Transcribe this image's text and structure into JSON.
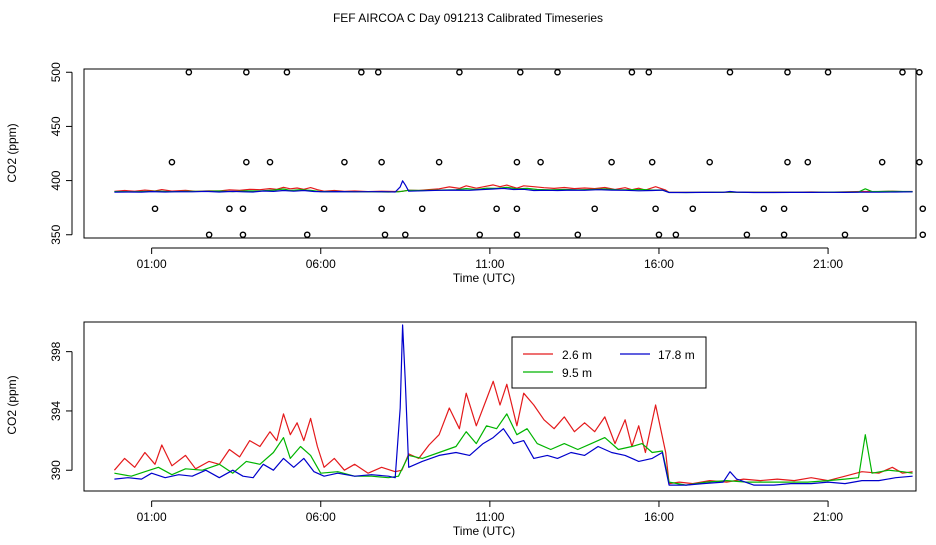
{
  "page": {
    "title": "FEF AIRCOA C  Day 091213  Calibrated Timeseries"
  },
  "colors": {
    "s26": "#e41a1c",
    "s95": "#00b400",
    "s178": "#0000cc",
    "axis": "#000000"
  },
  "chart_data": [
    {
      "type": "scatter",
      "panel": "top",
      "xlabel": "Time (UTC)",
      "ylabel": "CO2 (ppm)",
      "xlim": [
        -1.0,
        23.6
      ],
      "ylim": [
        347,
        503
      ],
      "x_ticks": [
        1,
        6,
        11,
        16,
        21
      ],
      "x_tick_labels": [
        "01:00",
        "06:00",
        "11:00",
        "16:00",
        "21:00"
      ],
      "y_ticks": [
        350,
        400,
        450,
        500
      ],
      "y_tick_labels": [
        "350",
        "400",
        "450",
        "500"
      ],
      "flag_points": [
        {
          "x": 2.1,
          "y": 500
        },
        {
          "x": 3.8,
          "y": 500
        },
        {
          "x": 5.0,
          "y": 500
        },
        {
          "x": 7.2,
          "y": 500
        },
        {
          "x": 7.7,
          "y": 500
        },
        {
          "x": 10.1,
          "y": 500
        },
        {
          "x": 11.9,
          "y": 500
        },
        {
          "x": 13.0,
          "y": 500
        },
        {
          "x": 15.2,
          "y": 500
        },
        {
          "x": 15.7,
          "y": 500
        },
        {
          "x": 18.1,
          "y": 500
        },
        {
          "x": 19.8,
          "y": 500
        },
        {
          "x": 21.0,
          "y": 500
        },
        {
          "x": 23.2,
          "y": 500
        },
        {
          "x": 23.7,
          "y": 500
        },
        {
          "x": 1.6,
          "y": 417
        },
        {
          "x": 3.8,
          "y": 417
        },
        {
          "x": 4.5,
          "y": 417
        },
        {
          "x": 6.7,
          "y": 417
        },
        {
          "x": 7.8,
          "y": 417
        },
        {
          "x": 9.5,
          "y": 417
        },
        {
          "x": 11.8,
          "y": 417
        },
        {
          "x": 12.5,
          "y": 417
        },
        {
          "x": 14.6,
          "y": 417
        },
        {
          "x": 15.8,
          "y": 417
        },
        {
          "x": 17.5,
          "y": 417
        },
        {
          "x": 19.8,
          "y": 417
        },
        {
          "x": 20.4,
          "y": 417
        },
        {
          "x": 22.6,
          "y": 417
        },
        {
          "x": 23.7,
          "y": 417
        },
        {
          "x": 1.1,
          "y": 374
        },
        {
          "x": 3.3,
          "y": 374
        },
        {
          "x": 3.7,
          "y": 374
        },
        {
          "x": 6.1,
          "y": 374
        },
        {
          "x": 7.8,
          "y": 374
        },
        {
          "x": 9.0,
          "y": 374
        },
        {
          "x": 11.2,
          "y": 374
        },
        {
          "x": 11.8,
          "y": 374
        },
        {
          "x": 14.1,
          "y": 374
        },
        {
          "x": 15.9,
          "y": 374
        },
        {
          "x": 17.0,
          "y": 374
        },
        {
          "x": 19.1,
          "y": 374
        },
        {
          "x": 19.7,
          "y": 374
        },
        {
          "x": 22.1,
          "y": 374
        },
        {
          "x": 23.8,
          "y": 374
        },
        {
          "x": 2.7,
          "y": 350
        },
        {
          "x": 3.7,
          "y": 350
        },
        {
          "x": 5.6,
          "y": 350
        },
        {
          "x": 7.9,
          "y": 350
        },
        {
          "x": 8.5,
          "y": 350
        },
        {
          "x": 10.7,
          "y": 350
        },
        {
          "x": 11.8,
          "y": 350
        },
        {
          "x": 13.6,
          "y": 350
        },
        {
          "x": 16.0,
          "y": 350
        },
        {
          "x": 16.5,
          "y": 350
        },
        {
          "x": 18.6,
          "y": 350
        },
        {
          "x": 19.7,
          "y": 350
        },
        {
          "x": 21.5,
          "y": 350
        },
        {
          "x": 23.8,
          "y": 350
        }
      ],
      "series_refs": [
        "2.6 m",
        "9.5 m",
        "17.8 m"
      ]
    },
    {
      "type": "line",
      "panel": "bottom",
      "xlabel": "Time (UTC)",
      "ylabel": "CO2 (ppm)",
      "xlim": [
        -1.0,
        23.6
      ],
      "ylim": [
        388.6,
        400.0
      ],
      "x_ticks": [
        1,
        6,
        11,
        16,
        21
      ],
      "x_tick_labels": [
        "01:00",
        "06:00",
        "11:00",
        "16:00",
        "21:00"
      ],
      "y_ticks": [
        390,
        394,
        398
      ],
      "y_tick_labels": [
        "390",
        "394",
        "398"
      ],
      "legend": {
        "position": "top-center",
        "entries": [
          "2.6 m",
          "17.8 m",
          "9.5 m"
        ]
      },
      "series": [
        {
          "name": "2.6 m",
          "color_key": "s26",
          "points": [
            [
              -0.1,
              390.0
            ],
            [
              0.2,
              390.8
            ],
            [
              0.5,
              390.2
            ],
            [
              0.8,
              391.2
            ],
            [
              1.1,
              390.4
            ],
            [
              1.3,
              391.7
            ],
            [
              1.6,
              390.3
            ],
            [
              2.0,
              391.0
            ],
            [
              2.3,
              390.1
            ],
            [
              2.7,
              390.6
            ],
            [
              3.0,
              390.4
            ],
            [
              3.3,
              391.4
            ],
            [
              3.6,
              390.9
            ],
            [
              3.9,
              392.0
            ],
            [
              4.2,
              391.6
            ],
            [
              4.5,
              392.6
            ],
            [
              4.7,
              392.0
            ],
            [
              4.9,
              393.8
            ],
            [
              5.1,
              392.4
            ],
            [
              5.3,
              393.2
            ],
            [
              5.5,
              392.0
            ],
            [
              5.7,
              393.5
            ],
            [
              5.9,
              391.6
            ],
            [
              6.1,
              390.2
            ],
            [
              6.4,
              390.8
            ],
            [
              6.7,
              390.0
            ],
            [
              7.0,
              390.4
            ],
            [
              7.4,
              389.8
            ],
            [
              7.8,
              390.2
            ],
            [
              8.2,
              389.9
            ],
            [
              8.4,
              390.0
            ],
            [
              8.6,
              391.1
            ],
            [
              8.9,
              390.8
            ],
            [
              9.2,
              391.7
            ],
            [
              9.5,
              392.4
            ],
            [
              9.8,
              394.2
            ],
            [
              10.1,
              392.8
            ],
            [
              10.3,
              395.2
            ],
            [
              10.6,
              393.0
            ],
            [
              10.9,
              394.8
            ],
            [
              11.1,
              396.0
            ],
            [
              11.3,
              394.4
            ],
            [
              11.5,
              395.8
            ],
            [
              11.8,
              393.0
            ],
            [
              12.0,
              395.2
            ],
            [
              12.3,
              394.4
            ],
            [
              12.6,
              393.4
            ],
            [
              12.9,
              392.8
            ],
            [
              13.2,
              393.6
            ],
            [
              13.5,
              392.6
            ],
            [
              13.8,
              393.2
            ],
            [
              14.1,
              392.6
            ],
            [
              14.4,
              393.6
            ],
            [
              14.7,
              391.8
            ],
            [
              15.0,
              393.4
            ],
            [
              15.2,
              391.6
            ],
            [
              15.4,
              393.0
            ],
            [
              15.6,
              391.2
            ],
            [
              15.9,
              394.4
            ],
            [
              16.2,
              391.2
            ],
            [
              16.3,
              389.1
            ],
            [
              16.6,
              389.2
            ],
            [
              17.0,
              389.1
            ],
            [
              17.5,
              389.3
            ],
            [
              18.0,
              389.2
            ],
            [
              18.5,
              389.4
            ],
            [
              19.0,
              389.3
            ],
            [
              19.5,
              389.4
            ],
            [
              20.0,
              389.3
            ],
            [
              20.5,
              389.5
            ],
            [
              21.0,
              389.3
            ],
            [
              21.5,
              389.6
            ],
            [
              22.0,
              389.9
            ],
            [
              22.5,
              389.8
            ],
            [
              22.9,
              390.2
            ],
            [
              23.2,
              389.8
            ],
            [
              23.5,
              389.9
            ]
          ]
        },
        {
          "name": "9.5 m",
          "color_key": "s95",
          "points": [
            [
              -0.1,
              389.8
            ],
            [
              0.4,
              389.6
            ],
            [
              0.8,
              389.9
            ],
            [
              1.2,
              390.2
            ],
            [
              1.6,
              389.7
            ],
            [
              2.0,
              390.1
            ],
            [
              2.5,
              390.0
            ],
            [
              3.0,
              390.4
            ],
            [
              3.4,
              389.8
            ],
            [
              3.8,
              390.6
            ],
            [
              4.2,
              390.4
            ],
            [
              4.6,
              391.2
            ],
            [
              4.9,
              392.2
            ],
            [
              5.1,
              390.8
            ],
            [
              5.4,
              391.6
            ],
            [
              5.7,
              391.0
            ],
            [
              6.0,
              389.8
            ],
            [
              6.5,
              389.9
            ],
            [
              7.0,
              389.6
            ],
            [
              7.5,
              389.6
            ],
            [
              8.0,
              389.5
            ],
            [
              8.3,
              389.6
            ],
            [
              8.6,
              391.0
            ],
            [
              9.0,
              390.8
            ],
            [
              9.5,
              391.2
            ],
            [
              10.0,
              391.6
            ],
            [
              10.3,
              392.6
            ],
            [
              10.6,
              391.8
            ],
            [
              10.9,
              393.0
            ],
            [
              11.2,
              392.8
            ],
            [
              11.5,
              393.8
            ],
            [
              11.8,
              392.4
            ],
            [
              12.1,
              392.8
            ],
            [
              12.4,
              391.8
            ],
            [
              12.8,
              391.4
            ],
            [
              13.2,
              391.8
            ],
            [
              13.6,
              391.4
            ],
            [
              14.0,
              391.8
            ],
            [
              14.4,
              392.2
            ],
            [
              14.8,
              391.4
            ],
            [
              15.2,
              391.6
            ],
            [
              15.5,
              391.8
            ],
            [
              15.8,
              391.2
            ],
            [
              16.1,
              391.3
            ],
            [
              16.3,
              389.2
            ],
            [
              16.8,
              389.0
            ],
            [
              17.4,
              389.2
            ],
            [
              18.0,
              389.3
            ],
            [
              18.6,
              389.2
            ],
            [
              19.2,
              389.2
            ],
            [
              19.8,
              389.2
            ],
            [
              20.4,
              389.2
            ],
            [
              21.0,
              389.3
            ],
            [
              21.5,
              389.4
            ],
            [
              21.9,
              389.5
            ],
            [
              22.1,
              392.4
            ],
            [
              22.3,
              389.8
            ],
            [
              22.8,
              390.0
            ],
            [
              23.2,
              389.9
            ],
            [
              23.5,
              389.8
            ]
          ]
        },
        {
          "name": "17.8 m",
          "color_key": "s178",
          "points": [
            [
              -0.1,
              389.4
            ],
            [
              0.3,
              389.5
            ],
            [
              0.7,
              389.4
            ],
            [
              1.0,
              389.8
            ],
            [
              1.4,
              389.5
            ],
            [
              1.8,
              389.7
            ],
            [
              2.2,
              389.6
            ],
            [
              2.6,
              390.0
            ],
            [
              3.0,
              389.5
            ],
            [
              3.4,
              390.0
            ],
            [
              3.7,
              389.6
            ],
            [
              4.0,
              389.5
            ],
            [
              4.3,
              390.4
            ],
            [
              4.6,
              390.0
            ],
            [
              4.9,
              390.8
            ],
            [
              5.2,
              390.2
            ],
            [
              5.5,
              390.8
            ],
            [
              5.8,
              389.9
            ],
            [
              6.1,
              389.6
            ],
            [
              6.5,
              389.8
            ],
            [
              7.0,
              389.6
            ],
            [
              7.5,
              389.7
            ],
            [
              8.0,
              389.6
            ],
            [
              8.2,
              389.5
            ],
            [
              8.35,
              394.2
            ],
            [
              8.42,
              399.8
            ],
            [
              8.5,
              396.0
            ],
            [
              8.6,
              390.2
            ],
            [
              9.0,
              390.6
            ],
            [
              9.5,
              391.0
            ],
            [
              10.0,
              391.2
            ],
            [
              10.4,
              391.0
            ],
            [
              10.8,
              391.8
            ],
            [
              11.1,
              392.2
            ],
            [
              11.4,
              392.8
            ],
            [
              11.7,
              391.8
            ],
            [
              12.0,
              392.0
            ],
            [
              12.3,
              390.8
            ],
            [
              12.7,
              391.0
            ],
            [
              13.0,
              390.8
            ],
            [
              13.4,
              391.2
            ],
            [
              13.8,
              391.0
            ],
            [
              14.2,
              391.6
            ],
            [
              14.6,
              391.2
            ],
            [
              15.0,
              391.0
            ],
            [
              15.4,
              390.6
            ],
            [
              15.8,
              390.8
            ],
            [
              16.1,
              391.2
            ],
            [
              16.3,
              389.0
            ],
            [
              16.8,
              389.0
            ],
            [
              17.3,
              389.1
            ],
            [
              17.9,
              389.2
            ],
            [
              18.1,
              389.9
            ],
            [
              18.3,
              389.4
            ],
            [
              18.8,
              389.0
            ],
            [
              19.4,
              389.0
            ],
            [
              19.9,
              389.1
            ],
            [
              20.5,
              389.1
            ],
            [
              21.0,
              389.2
            ],
            [
              21.5,
              389.1
            ],
            [
              22.0,
              389.3
            ],
            [
              22.5,
              389.3
            ],
            [
              23.0,
              389.5
            ],
            [
              23.5,
              389.6
            ]
          ]
        }
      ]
    }
  ]
}
